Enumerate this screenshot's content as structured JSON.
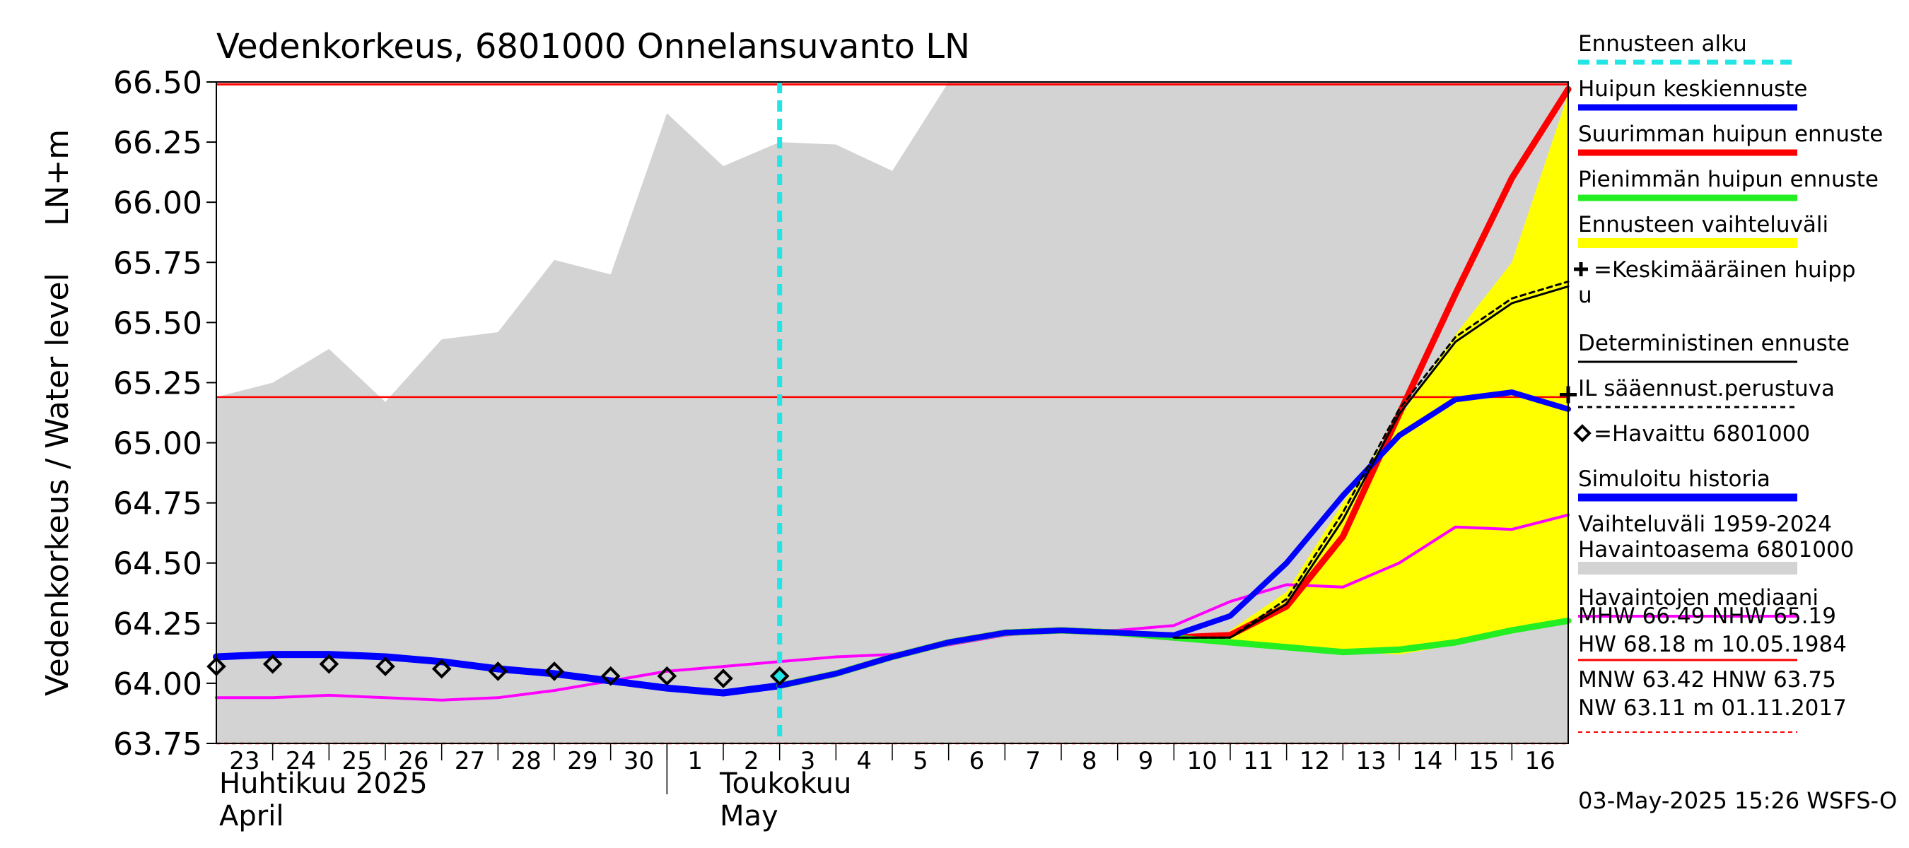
{
  "chart_data": {
    "type": "line",
    "title": "Vedenkorkeus, 6801000 Onnelansuvanto LN",
    "ylabel": "Vedenkorkeus / Water level",
    "yunit": "LN+m",
    "ylim": [
      63.75,
      66.5
    ],
    "yticks": [
      "66.50",
      "66.25",
      "66.00",
      "65.75",
      "65.50",
      "65.25",
      "65.00",
      "64.75",
      "64.50",
      "64.25",
      "64.00",
      "63.75"
    ],
    "x_start": 23,
    "x_end": 47,
    "day_labels": [
      "23",
      "24",
      "25",
      "26",
      "27",
      "28",
      "29",
      "30",
      "1",
      "2",
      "3",
      "4",
      "5",
      "6",
      "7",
      "8",
      "9",
      "10",
      "11",
      "12",
      "13",
      "14",
      "15",
      "16"
    ],
    "month_labels": [
      {
        "fi": "Huhtikuu  2025",
        "en": "April",
        "x": 23
      },
      {
        "fi": "Toukokuu",
        "en": "May",
        "x": 32
      }
    ],
    "forecast_start": 33,
    "timestamp": "03-May-2025 15:26 WSFS-O",
    "colors": {
      "forecast_start": "#22e5e5",
      "mean_peak": "#0000ff",
      "max_peak": "#ff0000",
      "min_peak": "#22ee22",
      "range": "#ffff00",
      "hist_range": "#d3d3d3",
      "median": "#ff00ff"
    },
    "legend": [
      {
        "label": "Ennusteen alku",
        "style": "cyan-dash"
      },
      {
        "label": "Huipun keskiennuste",
        "style": "blue"
      },
      {
        "label": "Suurimman huipun ennuste",
        "style": "red"
      },
      {
        "label": "Pienimmän huipun ennuste",
        "style": "green"
      },
      {
        "label": "Ennusteen vaihteluväli",
        "style": "yellow"
      },
      {
        "label": "=Keskimääräinen huipp",
        "label2": "u",
        "style": "plus"
      },
      {
        "label": "Deterministinen ennuste",
        "style": "black"
      },
      {
        "label": "IL sääennust.perustuva",
        "style": "dotted"
      },
      {
        "label": "=Havaittu 6801000",
        "style": "diamond"
      },
      {
        "label": "Simuloitu historia",
        "style": "blue-thick"
      },
      {
        "label": "Vaihteluväli 1959-2024",
        "label2": " Havaintoasema 6801000",
        "style": "gray"
      },
      {
        "label": "Havaintojen mediaani",
        "style": "magenta"
      }
    ],
    "stats": {
      "line1": "MHW  66.49 NHW  65.19",
      "line2": "HW  68.18 m 10.05.1984",
      "line3": "MNW  63.42 HNW  63.75",
      "line4": "NW  63.11 m 01.11.2017"
    },
    "reference_lines": {
      "mhw": 66.49,
      "nhw": 65.19,
      "hnw": 63.75
    },
    "mean_peak_marker": {
      "x": 47,
      "y": 65.2
    },
    "hist_range_upper": {
      "x": [
        23,
        24,
        25,
        26,
        27,
        28,
        29,
        30,
        31,
        32,
        33,
        34,
        35,
        36,
        36.4,
        47
      ],
      "y": [
        65.19,
        65.25,
        65.39,
        65.17,
        65.43,
        65.46,
        65.76,
        65.7,
        66.37,
        66.15,
        66.25,
        66.24,
        66.13,
        66.5,
        66.5,
        66.5
      ]
    },
    "forecast_range": {
      "x": [
        41,
        42,
        43,
        44,
        45,
        46,
        47
      ],
      "upper": [
        64.22,
        64.38,
        64.75,
        65.1,
        65.45,
        65.75,
        66.45
      ],
      "lower": [
        64.18,
        64.16,
        64.13,
        64.12,
        64.16,
        64.22,
        64.26
      ]
    },
    "series": [
      {
        "name": "Havaintojen mediaani",
        "x": [
          23,
          24,
          25,
          26,
          27,
          28,
          29,
          30,
          31,
          32,
          33,
          34,
          35,
          36,
          37,
          38,
          39,
          40,
          41,
          42,
          43,
          44,
          45,
          46,
          47
        ],
        "y": [
          63.94,
          63.94,
          63.95,
          63.94,
          63.93,
          63.94,
          63.97,
          64.01,
          64.05,
          64.07,
          64.09,
          64.11,
          64.12,
          64.16,
          64.2,
          64.22,
          64.22,
          64.24,
          64.34,
          64.41,
          64.4,
          64.5,
          64.65,
          64.64,
          64.7
        ]
      },
      {
        "name": "Simuloitu historia",
        "x": [
          23,
          24,
          25,
          26,
          27,
          28,
          29,
          30,
          31,
          32,
          33
        ],
        "y": [
          64.11,
          64.12,
          64.12,
          64.11,
          64.09,
          64.06,
          64.04,
          64.01,
          63.98,
          63.96,
          63.99
        ]
      },
      {
        "name": "Suurimman huipun ennuste",
        "x": [
          33,
          34,
          35,
          36,
          37,
          38,
          39,
          40,
          41,
          42,
          43,
          44,
          45,
          46,
          47
        ],
        "y": [
          63.99,
          64.04,
          64.11,
          64.17,
          64.21,
          64.22,
          64.21,
          64.19,
          64.2,
          64.32,
          64.61,
          65.12,
          65.62,
          66.1,
          66.47
        ]
      },
      {
        "name": "Pienimmän huipun ennuste",
        "x": [
          33,
          34,
          35,
          36,
          37,
          38,
          39,
          40,
          41,
          42,
          43,
          44,
          45,
          46,
          47
        ],
        "y": [
          63.99,
          64.04,
          64.11,
          64.17,
          64.21,
          64.22,
          64.21,
          64.19,
          64.17,
          64.15,
          64.13,
          64.14,
          64.17,
          64.22,
          64.26
        ]
      },
      {
        "name": "Huipun keskiennuste",
        "x": [
          33,
          34,
          35,
          36,
          37,
          38,
          39,
          40,
          41,
          42,
          43,
          44,
          45,
          46,
          47
        ],
        "y": [
          63.99,
          64.04,
          64.11,
          64.17,
          64.21,
          64.22,
          64.21,
          64.2,
          64.28,
          64.5,
          64.78,
          65.03,
          65.18,
          65.21,
          65.14
        ]
      },
      {
        "name": "Deterministinen ennuste",
        "x": [
          40,
          41,
          42,
          43,
          44,
          45,
          46,
          47
        ],
        "y": [
          64.19,
          64.19,
          64.33,
          64.68,
          65.12,
          65.42,
          65.58,
          65.65
        ]
      },
      {
        "name": "IL sääennust.perustuva",
        "x": [
          40,
          41,
          42,
          43,
          44,
          45,
          46,
          47
        ],
        "y": [
          64.19,
          64.19,
          64.35,
          64.71,
          65.14,
          65.44,
          65.6,
          65.67
        ]
      }
    ],
    "observed": {
      "name": "Havaittu 6801000",
      "x": [
        23,
        24,
        25,
        26,
        27,
        28,
        29,
        30,
        31,
        32,
        33
      ],
      "y": [
        64.07,
        64.08,
        64.08,
        64.07,
        64.06,
        64.05,
        64.05,
        64.03,
        64.03,
        64.02,
        64.03
      ]
    }
  }
}
